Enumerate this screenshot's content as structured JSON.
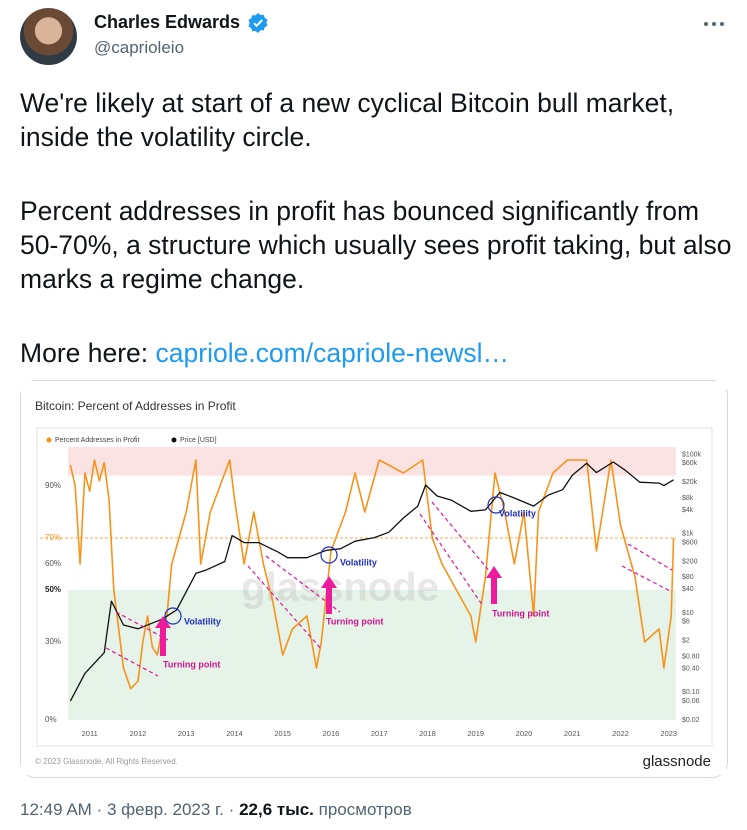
{
  "author": {
    "name": "Charles Edwards",
    "handle": "@caprioleio"
  },
  "tweet": {
    "paragraphs": [
      "We're likely at start of a new cyclical Bitcoin bull market, inside the volatility circle.",
      "Percent addresses in profit has bounced significantly from 50-70%, a structure which usually sees profit taking, but also marks a regime change."
    ],
    "more_label": "More here:",
    "link": "capriole.com/capriole-newsl…"
  },
  "chart_data": {
    "type": "line",
    "title": "Bitcoin: Percent of Addresses in Profit",
    "xlim": [
      2010.55,
      2023.15
    ],
    "xticks": [
      2011,
      2012,
      2013,
      2014,
      2015,
      2016,
      2017,
      2018,
      2019,
      2020,
      2021,
      2022,
      2023
    ],
    "ylim": [
      0,
      105
    ],
    "yticks": [
      {
        "value": 0,
        "label": "0%"
      },
      {
        "value": 30,
        "label": "30%"
      },
      {
        "value": 50,
        "label": "50%"
      },
      {
        "value": 60,
        "label": "60%"
      },
      {
        "value": 70,
        "label": "70%"
      },
      {
        "value": 90,
        "label": "90%"
      }
    ],
    "y2lim": [
      0.02,
      155000
    ],
    "y2log": true,
    "y2ticks": [
      {
        "value": 100000,
        "label": "$100k"
      },
      {
        "value": 60000,
        "label": "$60k"
      },
      {
        "value": 20000,
        "label": "$20k"
      },
      {
        "value": 8000,
        "label": "$8k"
      },
      {
        "value": 4000,
        "label": "$4k"
      },
      {
        "value": 1000,
        "label": "$1k"
      },
      {
        "value": 600,
        "label": "$600"
      },
      {
        "value": 200,
        "label": "$200"
      },
      {
        "value": 80,
        "label": "$80"
      },
      {
        "value": 40,
        "label": "$40"
      },
      {
        "value": 10,
        "label": "$10"
      },
      {
        "value": 6,
        "label": "$6"
      },
      {
        "value": 2,
        "label": "$2"
      },
      {
        "value": 0.8,
        "label": "$0.80"
      },
      {
        "value": 0.4,
        "label": "$0.40"
      },
      {
        "value": 0.1,
        "label": "$0.10"
      },
      {
        "value": 0.06,
        "label": "$0.06"
      },
      {
        "value": 0.02,
        "label": "$0.02"
      }
    ],
    "bands": [
      {
        "from": 94,
        "to": 105,
        "color": "#fbe3e3"
      },
      {
        "from": 0,
        "to": 50,
        "color": "#e5f3e8"
      }
    ],
    "ref_line": {
      "value": 70,
      "color": "#f7931a"
    },
    "series": [
      {
        "name": "Percent Addresses in Profit",
        "color": "#f7931a",
        "x": [
          2010.6,
          2010.7,
          2010.8,
          2010.9,
          2011.0,
          2011.1,
          2011.2,
          2011.3,
          2011.4,
          2011.5,
          2011.6,
          2011.7,
          2011.85,
          2012.0,
          2012.1,
          2012.2,
          2012.3,
          2012.4,
          2012.5,
          2012.6,
          2012.7,
          2012.85,
          2013.0,
          2013.2,
          2013.3,
          2013.5,
          2013.7,
          2013.9,
          2014.0,
          2014.2,
          2014.4,
          2014.6,
          2014.8,
          2015.0,
          2015.2,
          2015.5,
          2015.7,
          2015.8,
          2016.0,
          2016.3,
          2016.5,
          2016.7,
          2017.0,
          2017.5,
          2017.9,
          2018.1,
          2018.3,
          2018.6,
          2018.9,
          2019.0,
          2019.2,
          2019.4,
          2019.6,
          2019.8,
          2020.0,
          2020.2,
          2020.3,
          2020.6,
          2020.9,
          2021.3,
          2021.5,
          2021.8,
          2022.0,
          2022.3,
          2022.5,
          2022.8,
          2022.9,
          2023.05,
          2023.1
        ],
        "values": [
          98,
          90,
          60,
          95,
          88,
          100,
          92,
          99,
          85,
          50,
          35,
          20,
          12,
          15,
          30,
          40,
          28,
          25,
          35,
          40,
          60,
          70,
          80,
          100,
          60,
          80,
          90,
          100,
          85,
          60,
          80,
          60,
          45,
          25,
          35,
          40,
          20,
          30,
          65,
          80,
          95,
          80,
          100,
          95,
          100,
          70,
          60,
          50,
          40,
          30,
          55,
          95,
          80,
          60,
          80,
          40,
          80,
          95,
          100,
          100,
          65,
          100,
          75,
          55,
          30,
          35,
          20,
          40,
          70
        ]
      },
      {
        "name": "Price [USD]",
        "color": "#111111",
        "axis": "y2",
        "x": [
          2010.6,
          2010.9,
          2011.3,
          2011.45,
          2011.7,
          2012.0,
          2012.5,
          2012.8,
          2013.2,
          2013.4,
          2013.8,
          2013.95,
          2014.2,
          2014.5,
          2014.9,
          2015.1,
          2015.5,
          2015.9,
          2016.2,
          2016.5,
          2016.9,
          2017.2,
          2017.5,
          2017.8,
          2017.96,
          2018.2,
          2018.5,
          2018.9,
          2019.2,
          2019.5,
          2019.8,
          2020.2,
          2020.5,
          2020.8,
          2021.0,
          2021.3,
          2021.5,
          2021.85,
          2022.1,
          2022.4,
          2022.8,
          2022.9,
          2023.1
        ],
        "values": [
          0.06,
          0.3,
          1,
          20,
          5,
          4,
          7,
          12,
          100,
          120,
          200,
          900,
          600,
          600,
          350,
          250,
          250,
          380,
          420,
          650,
          800,
          1100,
          2500,
          5000,
          17000,
          9000,
          7000,
          3700,
          4000,
          11000,
          8000,
          5000,
          9500,
          13000,
          30000,
          60000,
          35000,
          65000,
          40000,
          20000,
          19000,
          16500,
          23000
        ]
      }
    ],
    "annotations": [
      "Volatility",
      "Volatility",
      "Volatility",
      "Turning point",
      "Turning point",
      "Turning point"
    ],
    "watermark": "glassnode",
    "copyright": "© 2023 Glassnode. All Rights Reserved.",
    "brand": "glassnode"
  },
  "footer": {
    "time": "12:49 AM",
    "separator": "·",
    "date": "3 февр. 2023 г.",
    "views": "22,6 тыс.",
    "views_label": "просмотров"
  }
}
